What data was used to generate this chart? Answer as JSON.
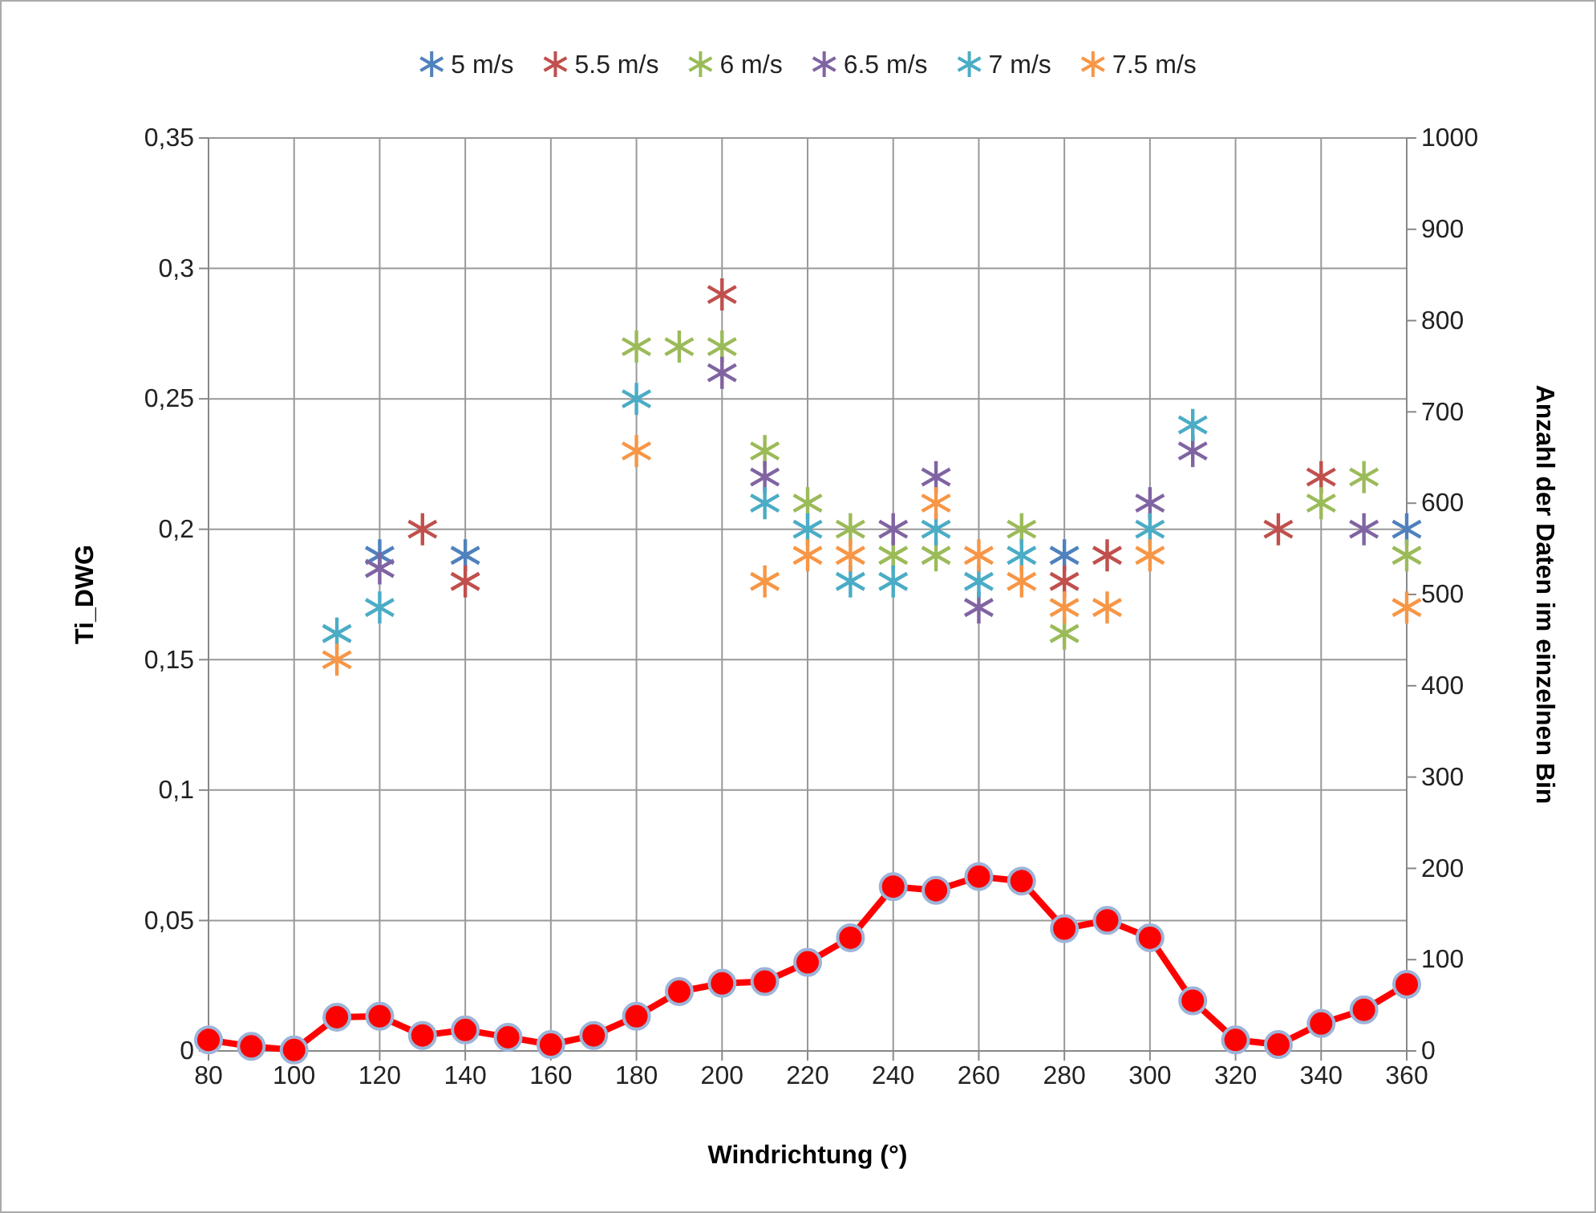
{
  "chart_data": {
    "type": "scatter",
    "xlabel": "Windrichtung (°)",
    "ylabel": "Ti_DWG",
    "y2label": "Anzahl der Daten im einzelnen Bin",
    "xlim": [
      80,
      360
    ],
    "xticks": [
      80,
      100,
      120,
      140,
      160,
      180,
      200,
      220,
      240,
      260,
      280,
      300,
      320,
      340,
      360
    ],
    "ylim": [
      0,
      0.35
    ],
    "yticks": [
      {
        "value": 0,
        "label": "0"
      },
      {
        "value": 0.05,
        "label": "0,05"
      },
      {
        "value": 0.1,
        "label": "0,1"
      },
      {
        "value": 0.15,
        "label": "0,15"
      },
      {
        "value": 0.2,
        "label": "0,2"
      },
      {
        "value": 0.25,
        "label": "0,25"
      },
      {
        "value": 0.3,
        "label": "0,3"
      },
      {
        "value": 0.35,
        "label": "0,35"
      }
    ],
    "y2lim": [
      0,
      1000
    ],
    "y2ticks": [
      0,
      100,
      200,
      300,
      400,
      500,
      600,
      700,
      800,
      900,
      1000
    ],
    "grid": true,
    "legend": "top",
    "marker": "cross",
    "series": [
      {
        "name": "5 m/s",
        "color": "#4f81bd",
        "x": [
          120,
          140,
          280,
          360
        ],
        "values": [
          0.19,
          0.19,
          0.19,
          0.2
        ]
      },
      {
        "name": "5.5 m/s",
        "color": "#c0504d",
        "x": [
          130,
          140,
          200,
          280,
          290,
          330,
          340
        ],
        "values": [
          0.2,
          0.18,
          0.29,
          0.18,
          0.19,
          0.2,
          0.22
        ]
      },
      {
        "name": "6 m/s",
        "color": "#9bbb59",
        "x": [
          180,
          190,
          200,
          210,
          220,
          230,
          240,
          250,
          270,
          280,
          340,
          350,
          360
        ],
        "values": [
          0.27,
          0.27,
          0.27,
          0.23,
          0.21,
          0.2,
          0.19,
          0.19,
          0.2,
          0.16,
          0.21,
          0.22,
          0.19
        ]
      },
      {
        "name": "6.5 m/s",
        "color": "#8064a2",
        "x": [
          120,
          200,
          210,
          240,
          250,
          260,
          300,
          310,
          350
        ],
        "values": [
          0.185,
          0.26,
          0.22,
          0.2,
          0.22,
          0.17,
          0.21,
          0.23,
          0.2
        ]
      },
      {
        "name": "7 m/s",
        "color": "#4bacc6",
        "x": [
          110,
          120,
          180,
          210,
          220,
          230,
          240,
          250,
          260,
          270,
          300,
          310
        ],
        "values": [
          0.16,
          0.17,
          0.25,
          0.21,
          0.2,
          0.18,
          0.18,
          0.2,
          0.18,
          0.19,
          0.2,
          0.24
        ]
      },
      {
        "name": "7.5 m/s",
        "color": "#f79646",
        "x": [
          110,
          180,
          210,
          220,
          230,
          250,
          260,
          270,
          280,
          290,
          300,
          360
        ],
        "values": [
          0.15,
          0.23,
          0.18,
          0.19,
          0.19,
          0.21,
          0.19,
          0.18,
          0.17,
          0.17,
          0.19,
          0.17
        ]
      },
      {
        "type": "line",
        "axis": "y2",
        "marker": "circle",
        "color": "#ff0000",
        "x": [
          80,
          90,
          100,
          110,
          120,
          130,
          140,
          150,
          160,
          170,
          180,
          190,
          200,
          210,
          220,
          230,
          240,
          250,
          260,
          270,
          280,
          290,
          300,
          310,
          320,
          330,
          340,
          350,
          360
        ],
        "values": [
          12,
          5,
          1,
          37,
          38,
          17,
          23,
          15,
          7,
          17,
          38,
          65,
          74,
          76,
          97,
          124,
          180,
          176,
          191,
          186,
          134,
          143,
          124,
          55,
          12,
          7,
          30,
          45,
          73
        ]
      }
    ]
  }
}
